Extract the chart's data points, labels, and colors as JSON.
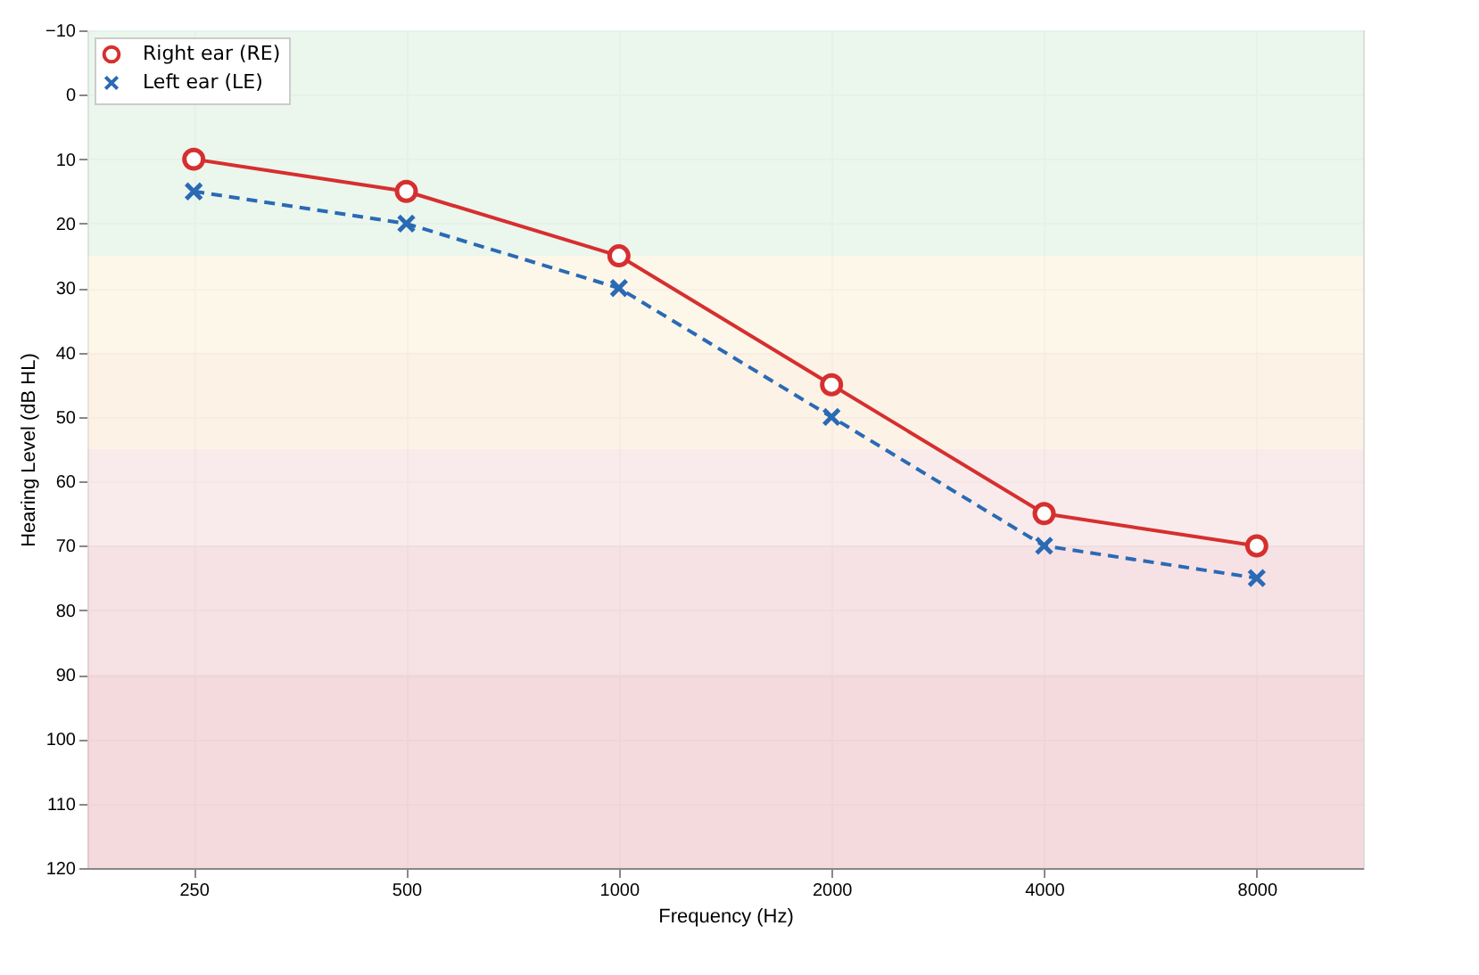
{
  "chart_data": {
    "type": "line",
    "xlabel": "Frequency (Hz)",
    "ylabel": "Hearing Level (dB HL)",
    "categories": [
      "250",
      "500",
      "1000",
      "2000",
      "4000",
      "8000"
    ],
    "series": [
      {
        "name": "Right ear (RE)",
        "color": "#d62f2f",
        "values": [
          10,
          15,
          25,
          45,
          65,
          70
        ],
        "marker": "circle",
        "line_style": "solid"
      },
      {
        "name": "Left ear (LE)",
        "color": "#2a6ab5",
        "values": [
          15,
          20,
          30,
          50,
          70,
          75
        ],
        "marker": "cross",
        "line_style": "dashed"
      }
    ],
    "ylim": [
      120,
      -10
    ],
    "yticks": [
      -10,
      0,
      10,
      20,
      30,
      40,
      50,
      60,
      70,
      80,
      90,
      100,
      110,
      120
    ],
    "bands": [
      {
        "axis": "y",
        "from": -10,
        "to": 25,
        "color": "#e8f4ea"
      },
      {
        "axis": "y",
        "from": 25,
        "to": 40,
        "color": "#fdf6e6"
      },
      {
        "axis": "y",
        "from": 40,
        "to": 55,
        "color": "#fbf0e2"
      },
      {
        "axis": "y",
        "from": 55,
        "to": 70,
        "color": "#f8e8e8"
      },
      {
        "axis": "y",
        "from": 70,
        "to": 90,
        "color": "#f5dcdf"
      },
      {
        "axis": "y",
        "from": 90,
        "to": 120,
        "color": "#f2d4d7"
      }
    ],
    "grid": true,
    "legend": "top left"
  }
}
